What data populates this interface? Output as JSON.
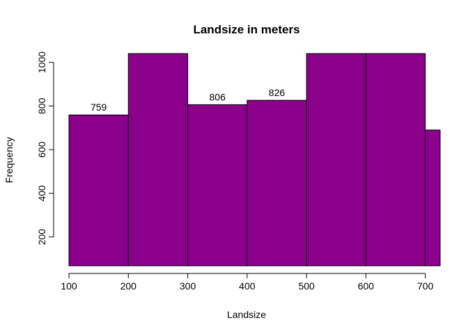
{
  "chart_data": {
    "type": "bar",
    "title": "Landsize in meters",
    "xlabel": "Landsize",
    "ylabel": "Frequency",
    "bar_color": "#8B008B",
    "bins": [
      {
        "start": 100,
        "end": 200,
        "value": 759,
        "label": "759"
      },
      {
        "start": 200,
        "end": 300,
        "value": 1040,
        "label": ""
      },
      {
        "start": 300,
        "end": 400,
        "value": 806,
        "label": "806"
      },
      {
        "start": 400,
        "end": 500,
        "value": 826,
        "label": "826"
      },
      {
        "start": 500,
        "end": 600,
        "value": 1040,
        "label": ""
      },
      {
        "start": 600,
        "end": 700,
        "value": 1040,
        "label": ""
      },
      {
        "start": 700,
        "end": 725,
        "value": 690,
        "label": ""
      }
    ],
    "xlim": [
      100,
      725
    ],
    "ylim": [
      68,
      1040
    ],
    "x_ticks": [
      100,
      200,
      300,
      400,
      500,
      600,
      700
    ],
    "y_ticks": [
      200,
      400,
      600,
      800,
      1000
    ],
    "grid": false,
    "legend": "none"
  }
}
